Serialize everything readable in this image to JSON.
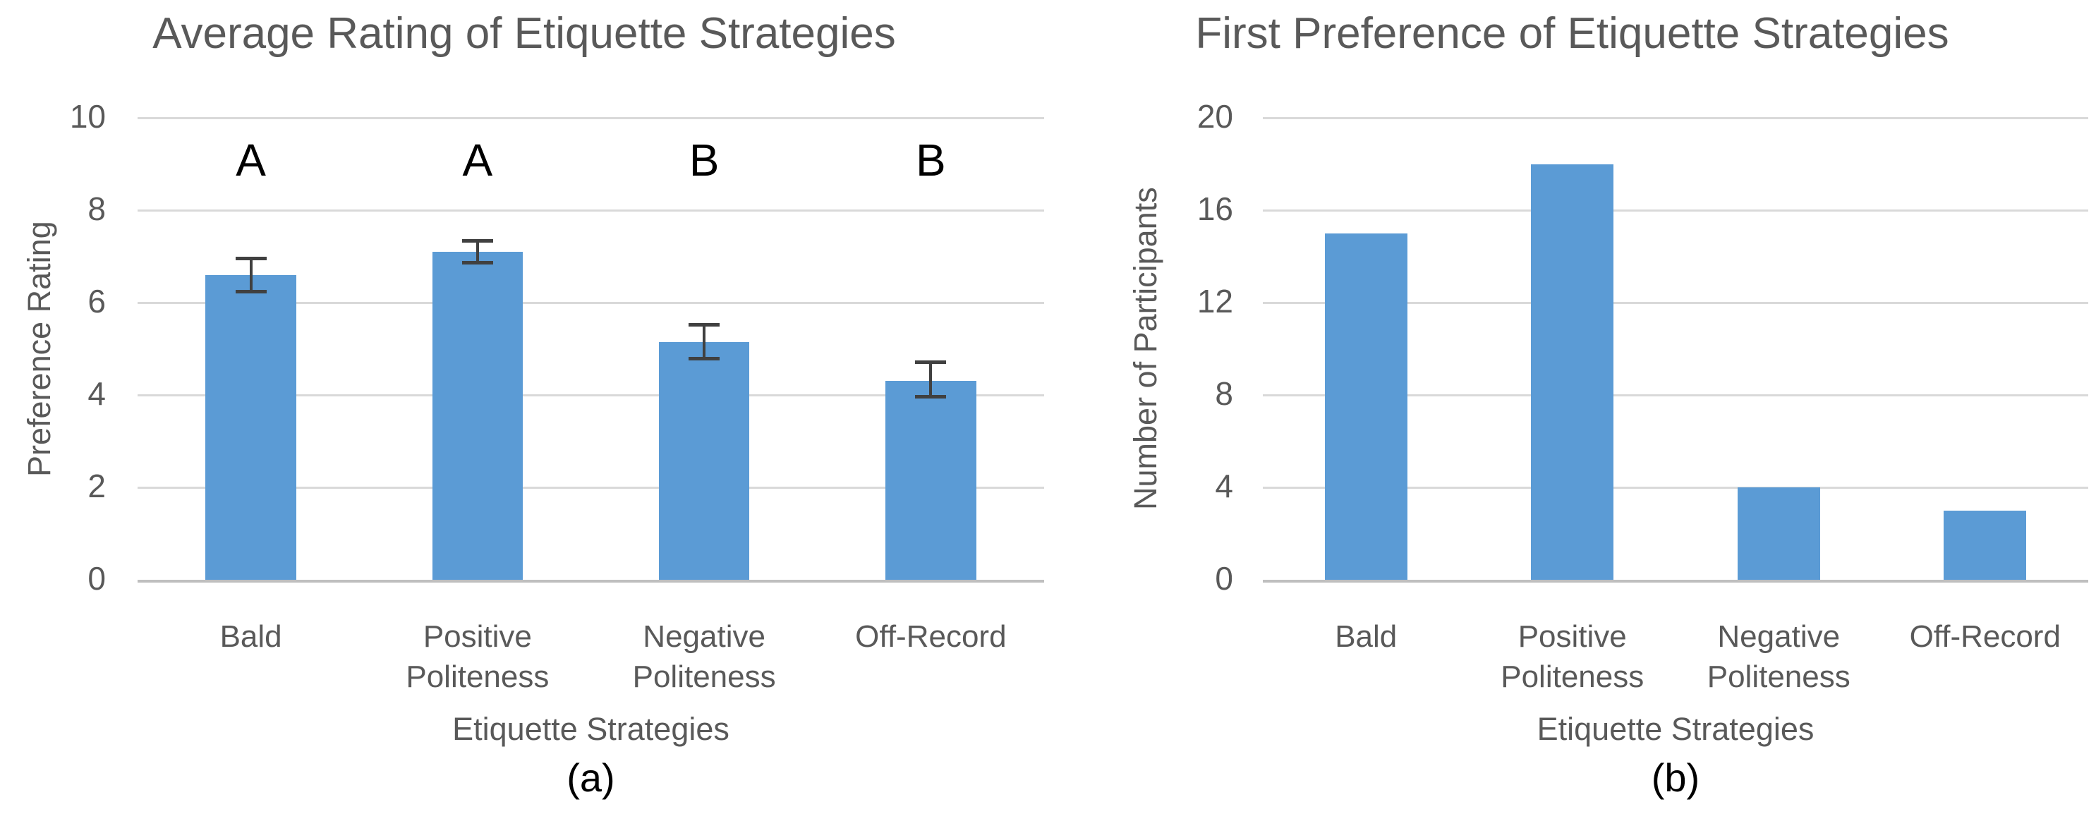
{
  "colors": {
    "bar": "#5B9BD5",
    "gridline": "#D9D9D9",
    "baseline": "#BFBFBF",
    "axis_text": "#595959",
    "title_text": "#595959",
    "annotation_text": "#000000",
    "error_bar": "#404040"
  },
  "chart_data": [
    {
      "type": "bar",
      "title": "Average Rating of Etiquette Strategies",
      "xlabel": "Etiquette Strategies",
      "ylabel": "Preference Rating",
      "caption": "(a)",
      "categories": [
        "Bald",
        "Positive Politeness",
        "Negative Politeness",
        "Off-Record"
      ],
      "values": [
        6.6,
        7.1,
        5.15,
        4.3
      ],
      "error_bars": {
        "plus": [
          0.4,
          0.27,
          0.4,
          0.45
        ],
        "minus": [
          0.4,
          0.27,
          0.4,
          0.38
        ]
      },
      "bar_annotations": [
        "A",
        "A",
        "B",
        "B"
      ],
      "ylim": [
        0,
        10
      ],
      "yticks": [
        0,
        2,
        4,
        6,
        8,
        10
      ],
      "grid": true,
      "legend": false
    },
    {
      "type": "bar",
      "title": "First Preference of Etiquette Strategies",
      "xlabel": "Etiquette Strategies",
      "ylabel": "Number of Participants",
      "caption": "(b)",
      "categories": [
        "Bald",
        "Positive Politeness",
        "Negative Politeness",
        "Off-Record"
      ],
      "values": [
        15,
        18,
        4,
        3
      ],
      "ylim": [
        0,
        20
      ],
      "yticks": [
        0,
        4,
        8,
        12,
        16,
        20
      ],
      "grid": true,
      "legend": false
    }
  ]
}
